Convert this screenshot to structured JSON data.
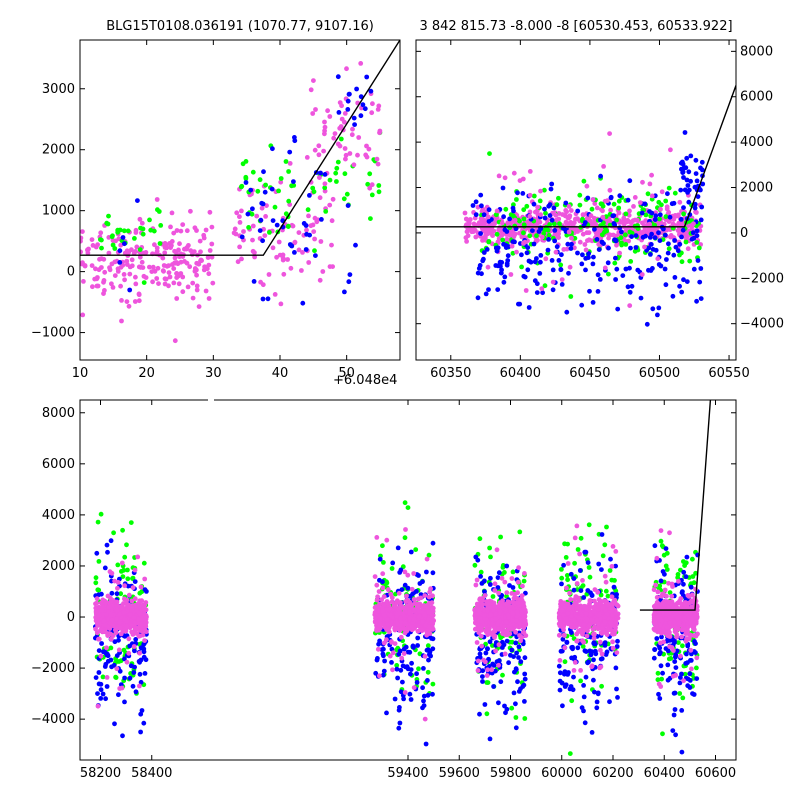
{
  "figure": {
    "background": "#ffffff",
    "series_colors": {
      "blue": "#0000ff",
      "green": "#00ff00",
      "magenta": "#ee55dd",
      "model": "#000000"
    }
  },
  "chart_data": [
    {
      "id": "top_left",
      "type": "scatter",
      "title": "BLG15T0108.036191 (1070.77, 9107.16)",
      "x_offset_label": "+6.048e4",
      "xlim": [
        10,
        58
      ],
      "ylim": [
        -1450,
        3800
      ],
      "x_ticks": [
        10,
        20,
        30,
        40,
        50
      ],
      "y_ticks": [
        -1000,
        0,
        1000,
        2000,
        3000
      ],
      "y_axis_side": "left",
      "grid": false,
      "legend": "none",
      "model_line": {
        "x": [
          10,
          37.5,
          58
        ],
        "y": [
          270,
          270,
          3800
        ]
      },
      "scatter_clusters": [
        {
          "color": "magenta",
          "n": 230,
          "x": [
            10,
            30
          ],
          "y_center": 200,
          "y_spread": 550
        },
        {
          "color": "green",
          "n": 30,
          "x": [
            13,
            23
          ],
          "y_center": 700,
          "y_spread": 350
        },
        {
          "color": "blue",
          "n": 6,
          "x": [
            12,
            19
          ],
          "y_center": 500,
          "y_spread": 900
        },
        {
          "color": "magenta",
          "n": 90,
          "x": [
            33,
            48
          ],
          "y_center": 600,
          "y_spread": 700
        },
        {
          "color": "green",
          "n": 60,
          "x": [
            34,
            55
          ],
          "y_center": 1400,
          "y_spread": 700
        },
        {
          "color": "blue",
          "n": 45,
          "x": [
            33,
            52
          ],
          "y_center": 900,
          "y_spread": 1200
        },
        {
          "color": "magenta",
          "n": 60,
          "x": [
            44,
            55
          ],
          "y_center": 2200,
          "y_spread": 800
        },
        {
          "color": "blue",
          "n": 15,
          "x": [
            48,
            54
          ],
          "y_center": 2800,
          "y_spread": 500
        }
      ]
    },
    {
      "id": "top_right",
      "type": "scatter",
      "title": "3 842 815.73 -8.000 -8 [60530.453, 60533.922]",
      "xlim": [
        60325,
        60555
      ],
      "ylim": [
        -5600,
        8500
      ],
      "x_ticks": [
        60350,
        60400,
        60450,
        60500,
        60550
      ],
      "y_ticks": [
        -4000,
        -2000,
        0,
        2000,
        4000,
        6000,
        8000
      ],
      "y_axis_side": "right",
      "grid": false,
      "legend": "none",
      "model_line": {
        "x": [
          60325,
          60518,
          60555
        ],
        "y": [
          270,
          270,
          6500
        ]
      },
      "scatter_clusters": [
        {
          "color": "magenta",
          "n": 600,
          "x": [
            60360,
            60530
          ],
          "y_center": 250,
          "y_spread": 600
        },
        {
          "color": "green",
          "n": 180,
          "x": [
            60370,
            60530
          ],
          "y_center": 200,
          "y_spread": 1600
        },
        {
          "color": "blue",
          "n": 260,
          "x": [
            60365,
            60530
          ],
          "y_center": -500,
          "y_spread": 2200
        },
        {
          "color": "magenta",
          "n": 80,
          "x": [
            60370,
            60530
          ],
          "y_center": 800,
          "y_spread": 2400
        },
        {
          "color": "blue",
          "n": 40,
          "x": [
            60515,
            60532
          ],
          "y_center": 2500,
          "y_spread": 1000
        }
      ]
    },
    {
      "id": "bottom",
      "type": "scatter",
      "xlim": [
        58120,
        60680
      ],
      "ylim": [
        -5600,
        8500
      ],
      "x_ticks": [
        58200,
        58400,
        59400,
        59600,
        59800,
        60000,
        60200,
        60400,
        60600
      ],
      "y_ticks": [
        -4000,
        -2000,
        0,
        2000,
        4000,
        6000,
        8000
      ],
      "y_axis_side": "left",
      "x_axis_break": true,
      "grid": false,
      "legend": "none",
      "model_line": {
        "x": [
          60305,
          60520,
          60580
        ],
        "y": [
          270,
          270,
          8500
        ]
      },
      "seasons": [
        {
          "x": [
            58180,
            58380
          ]
        },
        {
          "x": [
            59270,
            59500
          ]
        },
        {
          "x": [
            59660,
            59860
          ]
        },
        {
          "x": [
            59990,
            60220
          ]
        },
        {
          "x": [
            60360,
            60530
          ]
        }
      ],
      "season_clusters": [
        {
          "color": "green",
          "n": 90,
          "y_center": 0,
          "y_spread": 2600
        },
        {
          "color": "blue",
          "n": 160,
          "y_center": -800,
          "y_spread": 2400
        },
        {
          "color": "magenta",
          "n": 500,
          "y_center": 0,
          "y_spread": 500
        },
        {
          "color": "magenta",
          "n": 60,
          "y_center": 0,
          "y_spread": 2200
        }
      ]
    }
  ]
}
